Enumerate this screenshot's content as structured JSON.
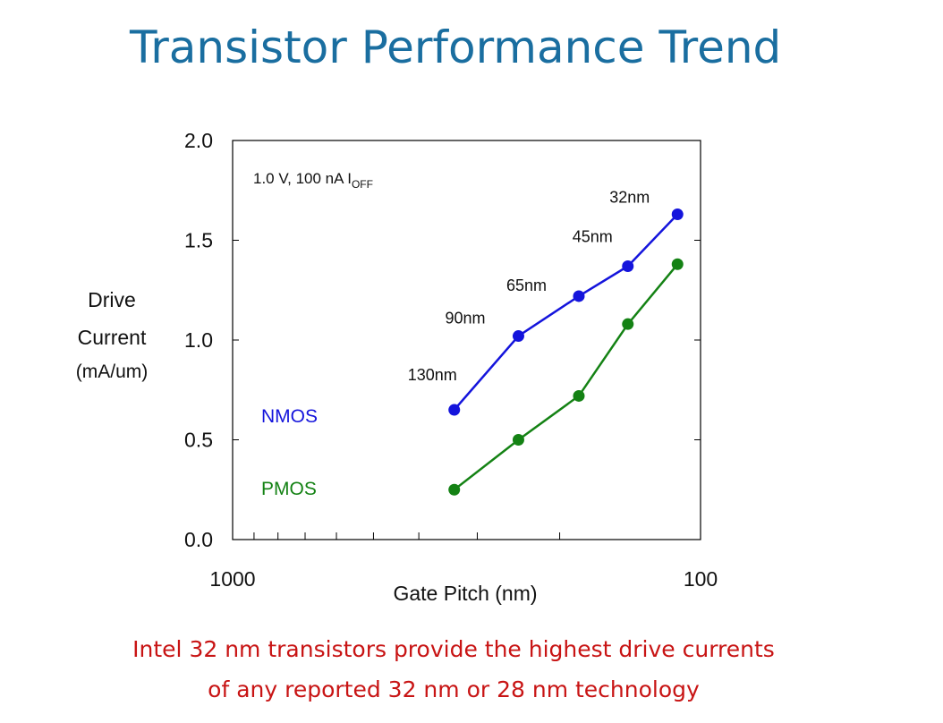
{
  "title": "Transistor Performance Trend",
  "ylabel_lines": [
    "Drive",
    "Current",
    "(mA/um)"
  ],
  "caption_lines": [
    "Intel 32 nm transistors provide the highest drive currents",
    "of any reported 32 nm or 28 nm technology"
  ],
  "chart_data": {
    "type": "scatter",
    "xlabel": "Gate Pitch (nm)",
    "ylabel": "Drive Current (mA/um)",
    "x_scale": "log",
    "x_reversed": true,
    "xlim": [
      1000,
      100
    ],
    "ylim": [
      0,
      2.0
    ],
    "x_tick_labels": [
      "1000",
      "100"
    ],
    "y_tick_labels": [
      "0.0",
      "0.5",
      "1.0",
      "1.5",
      "2.0"
    ],
    "y_ticks": [
      0,
      0.5,
      1.0,
      1.5,
      2.0
    ],
    "condition_label": "1.0 V, 100 nA I",
    "condition_sub": "OFF",
    "x": [
      336,
      245,
      182,
      143,
      112
    ],
    "node_labels": [
      "130nm",
      "90nm",
      "65nm",
      "45nm",
      "32nm"
    ],
    "series": [
      {
        "name": "NMOS",
        "color": "#1414dc",
        "values": [
          0.65,
          1.02,
          1.22,
          1.37,
          1.63
        ]
      },
      {
        "name": "PMOS",
        "color": "#148214",
        "values": [
          0.25,
          0.5,
          0.72,
          1.08,
          1.38
        ]
      }
    ],
    "grid": false,
    "legend": "inline labels"
  }
}
